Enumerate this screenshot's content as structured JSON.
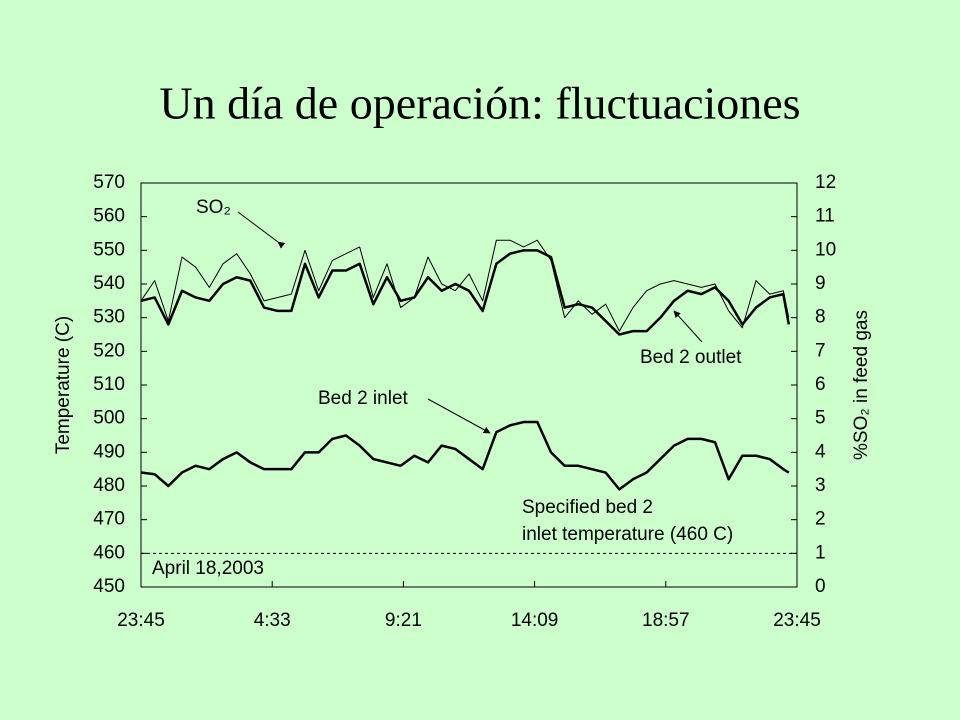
{
  "chart_data": {
    "type": "line",
    "title": "Un día de operación: fluctuaciones",
    "y_label": "Temperature (C)",
    "y2_label": "%SO₂ in feed gas",
    "x": [
      0,
      0.5,
      1,
      1.5,
      2,
      2.5,
      3,
      3.5,
      4,
      4.5,
      5,
      5.5,
      6,
      6.5,
      7,
      7.5,
      8,
      8.5,
      9,
      9.5,
      10,
      10.5,
      11,
      11.5,
      12,
      12.5,
      13,
      13.5,
      14,
      14.5,
      15,
      15.5,
      16,
      16.5,
      17,
      17.5,
      18,
      18.5,
      19,
      19.5,
      20,
      20.5,
      21,
      21.5,
      22,
      22.5,
      23,
      23.5,
      23.7
    ],
    "xlim": [
      0,
      24
    ],
    "xticks": [
      {
        "value": 0,
        "label": "23:45"
      },
      {
        "value": 4.8,
        "label": "4:33"
      },
      {
        "value": 9.6,
        "label": "9:21"
      },
      {
        "value": 14.4,
        "label": "14:09"
      },
      {
        "value": 19.2,
        "label": "18:57"
      },
      {
        "value": 24,
        "label": "23:45"
      }
    ],
    "ylim": [
      450,
      570
    ],
    "yticks": [
      450,
      460,
      470,
      480,
      490,
      500,
      510,
      520,
      530,
      540,
      550,
      560,
      570
    ],
    "y2lim": [
      0,
      12
    ],
    "y2ticks": [
      0,
      1,
      2,
      3,
      4,
      5,
      6,
      7,
      8,
      9,
      10,
      11,
      12
    ],
    "reference_line": {
      "value": 460,
      "color": "#000000"
    },
    "series": [
      {
        "name": "Bed 2 outlet",
        "color": "#000000",
        "width": 2.5,
        "values": [
          535,
          536,
          528,
          538,
          536,
          535,
          540,
          542,
          541,
          533,
          532,
          532,
          546,
          536,
          544,
          544,
          546,
          534,
          542,
          535,
          536,
          542,
          538,
          540,
          538,
          532,
          546,
          549,
          550,
          550,
          548,
          533,
          534,
          533,
          529,
          525,
          526,
          526,
          530,
          535,
          538,
          537,
          539,
          535,
          528,
          533,
          536,
          537,
          528
        ]
      },
      {
        "name": "Bed 2 inlet",
        "color": "#000000",
        "width": 2.5,
        "values": [
          484,
          483.5,
          480,
          484,
          486,
          485,
          488,
          490,
          487,
          485,
          485,
          485,
          490,
          490,
          494,
          495,
          492,
          488,
          487,
          486,
          489,
          487,
          492,
          491,
          488,
          485,
          496,
          498,
          499,
          499,
          490,
          486,
          486,
          485,
          484,
          479,
          482,
          484,
          488,
          492,
          494,
          494,
          493,
          482,
          489,
          489,
          488,
          485,
          484
        ]
      },
      {
        "name": "SO₂",
        "color": "#000000",
        "width": 1,
        "axis": "y2",
        "values": [
          8.5,
          9.1,
          7.9,
          9.8,
          9.5,
          8.9,
          9.6,
          9.9,
          9.3,
          8.5,
          8.6,
          8.7,
          10.0,
          8.8,
          9.7,
          9.9,
          10.1,
          8.6,
          9.6,
          8.3,
          8.6,
          9.8,
          9.0,
          8.8,
          9.3,
          8.5,
          10.3,
          10.3,
          10.1,
          10.3,
          9.7,
          8.0,
          8.5,
          8.1,
          8.4,
          7.6,
          8.3,
          8.8,
          9.0,
          9.1,
          9.0,
          8.9,
          9.0,
          8.2,
          7.7,
          9.1,
          8.7,
          8.8,
          8.0
        ]
      }
    ],
    "annotations": [
      "SO₂",
      "Bed 2 outlet",
      "Bed 2 inlet",
      "Specified bed 2",
      "inlet temperature (460 C)",
      "April 18,2003"
    ]
  }
}
